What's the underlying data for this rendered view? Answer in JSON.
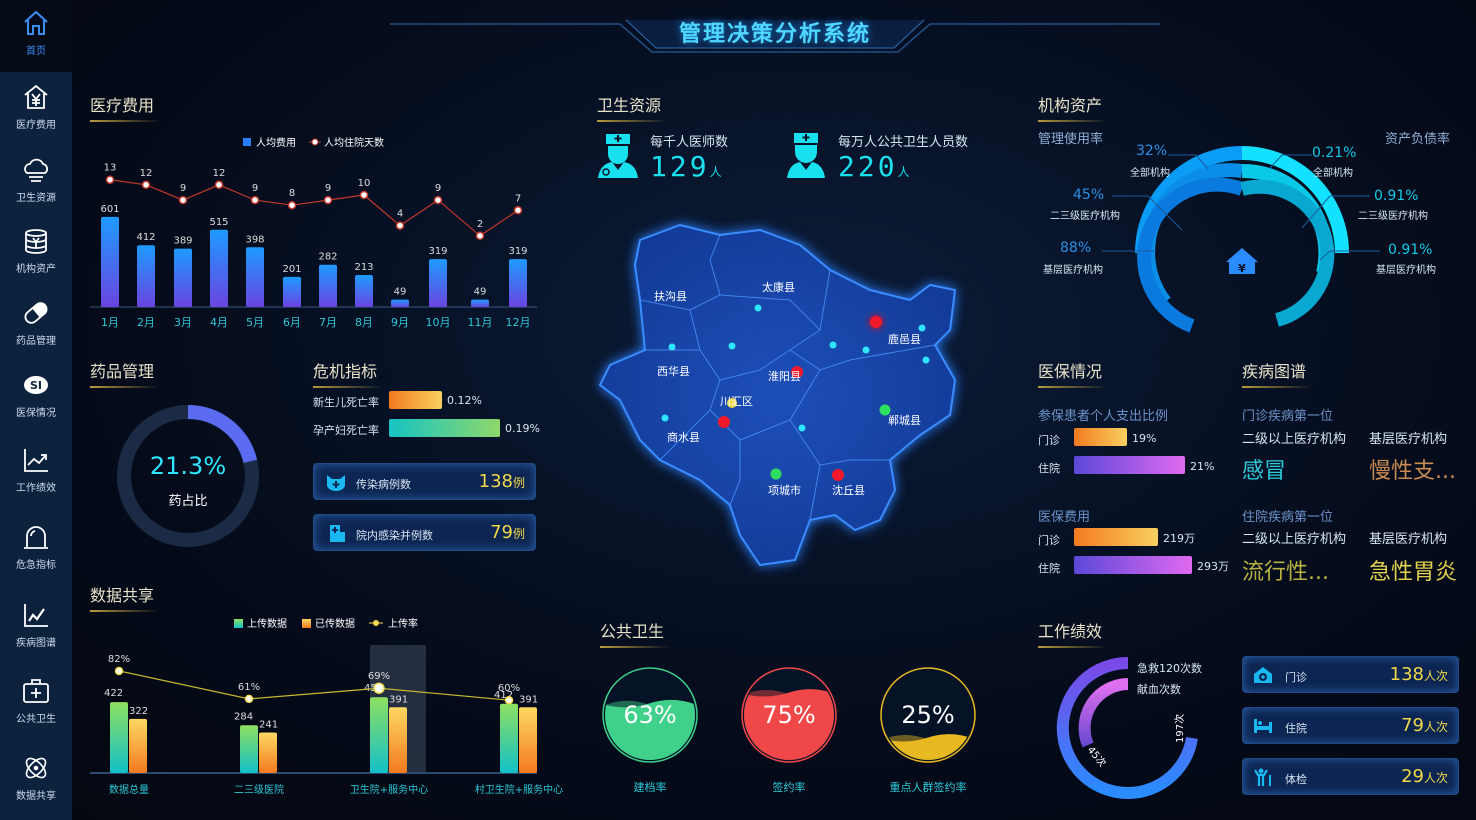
{
  "header": {
    "title": "管理决策分析系统"
  },
  "sidebar": {
    "items": [
      {
        "label": "首页",
        "icon": "home-icon"
      },
      {
        "label": "医疗费用",
        "icon": "house-yen-icon"
      },
      {
        "label": "卫生资源",
        "icon": "cloud-icon"
      },
      {
        "label": "机构资产",
        "icon": "coins-yen-icon"
      },
      {
        "label": "药品管理",
        "icon": "pill-icon"
      },
      {
        "label": "医保情况",
        "icon": "si-logo-icon"
      },
      {
        "label": "工作绩效",
        "icon": "trend-chart-icon"
      },
      {
        "label": "危急指标",
        "icon": "alarm-dome-icon"
      },
      {
        "label": "疾病图谱",
        "icon": "line-chart-icon"
      },
      {
        "label": "公共卫生",
        "icon": "medical-kit-icon"
      },
      {
        "label": "数据共享",
        "icon": "atom-icon"
      }
    ]
  },
  "sections": {
    "medical_cost": "医疗费用",
    "health_resources": "卫生资源",
    "org_assets": "机构资产",
    "drug_mgmt": "药品管理",
    "crisis": "危机指标",
    "insurance": "医保情况",
    "disease": "疾病图谱",
    "data_share": "数据共享",
    "public_health": "公共卫生",
    "performance": "工作绩效"
  },
  "chart_data": [
    {
      "type": "bar",
      "id": "medical_cost",
      "categories": [
        "1月",
        "2月",
        "3月",
        "4月",
        "5月",
        "6月",
        "7月",
        "8月",
        "9月",
        "10月",
        "11月",
        "12月"
      ],
      "series": [
        {
          "name": "人均费用",
          "type": "bar",
          "values": [
            601,
            412,
            389,
            515,
            398,
            201,
            282,
            213,
            49,
            319,
            49,
            319
          ],
          "color": "#2196f3"
        },
        {
          "name": "人均住院天数",
          "type": "line",
          "values": [
            13,
            12,
            9,
            12,
            9,
            8,
            9,
            10,
            4,
            9,
            2,
            7
          ],
          "color": "#c0392b"
        }
      ],
      "legend": "top"
    },
    {
      "type": "bar",
      "id": "data_share",
      "categories": [
        "数据总量",
        "二三级医院",
        "卫生院+服务中心",
        "村卫生院+服务中心"
      ],
      "series": [
        {
          "name": "上传数据",
          "type": "bar",
          "values": [
            422,
            284,
            451,
            412
          ],
          "color": "#7ed56f"
        },
        {
          "name": "已传数据",
          "type": "bar",
          "values": [
            322,
            241,
            391,
            391
          ],
          "color": "#f7b733"
        },
        {
          "name": "上传率",
          "type": "line",
          "values": [
            82,
            61,
            69,
            60
          ],
          "unit": "%",
          "color": "#f0d84a"
        }
      ],
      "legend": "top",
      "highlighted": "卫生院+服务中心"
    }
  ],
  "health_resources": {
    "doctors": {
      "label": "每千人医师数",
      "value": "129",
      "unit": "人"
    },
    "staff": {
      "label": "每万人公共卫生人员数",
      "value": "220",
      "unit": "人"
    },
    "map": {
      "regions": [
        "扶沟县",
        "太康县",
        "西华县",
        "淮阳县",
        "川汇区",
        "鹿邑县",
        "商水县",
        "郸城县",
        "项城市",
        "沈丘县"
      ]
    }
  },
  "org_assets": {
    "left_title": "管理使用率",
    "right_title": "资产负债率",
    "usage": [
      {
        "value": "32%",
        "label": "全部机构",
        "pct": 32
      },
      {
        "value": "45%",
        "label": "二三级医疗机构",
        "pct": 45
      },
      {
        "value": "88%",
        "label": "基层医疗机构",
        "pct": 88
      }
    ],
    "debt": [
      {
        "value": "0.21%",
        "label": "全部机构"
      },
      {
        "value": "0.91%",
        "label": "二三级医疗机构"
      },
      {
        "value": "0.91%",
        "label": "基层医疗机构"
      }
    ]
  },
  "drug": {
    "value": "21.3%",
    "label": "药占比",
    "pct": 21.3
  },
  "crisis": {
    "rates": [
      {
        "label": "新生儿死亡率",
        "value": "0.12%",
        "pct": 0.12
      },
      {
        "label": "孕产妇死亡率",
        "value": "0.19%",
        "pct": 0.19
      }
    ],
    "boxes": [
      {
        "label": "传染病例数",
        "value": "138",
        "unit": "例"
      },
      {
        "label": "院内感染并例数",
        "value": "79",
        "unit": "例"
      }
    ]
  },
  "insurance": {
    "ratio_title": "参保患者个人支出比例",
    "ratio": [
      {
        "label": "门诊",
        "value": "19%",
        "pct": 19
      },
      {
        "label": "住院",
        "value": "21%",
        "pct": 21
      }
    ],
    "cost_title": "医保费用",
    "cost": [
      {
        "label": "门诊",
        "value": "219万",
        "num": 219
      },
      {
        "label": "住院",
        "value": "293万",
        "num": 293
      }
    ]
  },
  "disease": {
    "outpatient_title": "门诊疾病第一位",
    "inpatient_title": "住院疾病第一位",
    "col1": "二级以上医疗机构",
    "col2": "基层医疗机构",
    "outpatient": [
      "感冒",
      "慢性支..."
    ],
    "inpatient": [
      "流行性...",
      "急性胃炎"
    ]
  },
  "public_health": [
    {
      "value": "63%",
      "label": "建档率",
      "pct": 63,
      "color": "#3fd08a"
    },
    {
      "value": "75%",
      "label": "签约率",
      "pct": 75,
      "color": "#f04848"
    },
    {
      "value": "25%",
      "label": "重点人群签约率",
      "pct": 25,
      "color": "#e8b820"
    }
  ],
  "performance": {
    "ring": [
      {
        "label": "急救120次数",
        "value": "197次"
      },
      {
        "label": "献血次数",
        "value": "45次"
      }
    ],
    "boxes": [
      {
        "label": "门诊",
        "value": "138",
        "unit": "人次",
        "icon": "clinic-icon"
      },
      {
        "label": "住院",
        "value": "79",
        "unit": "人次",
        "icon": "bed-icon"
      },
      {
        "label": "体检",
        "value": "29",
        "unit": "人次",
        "icon": "checkup-icon"
      }
    ]
  }
}
